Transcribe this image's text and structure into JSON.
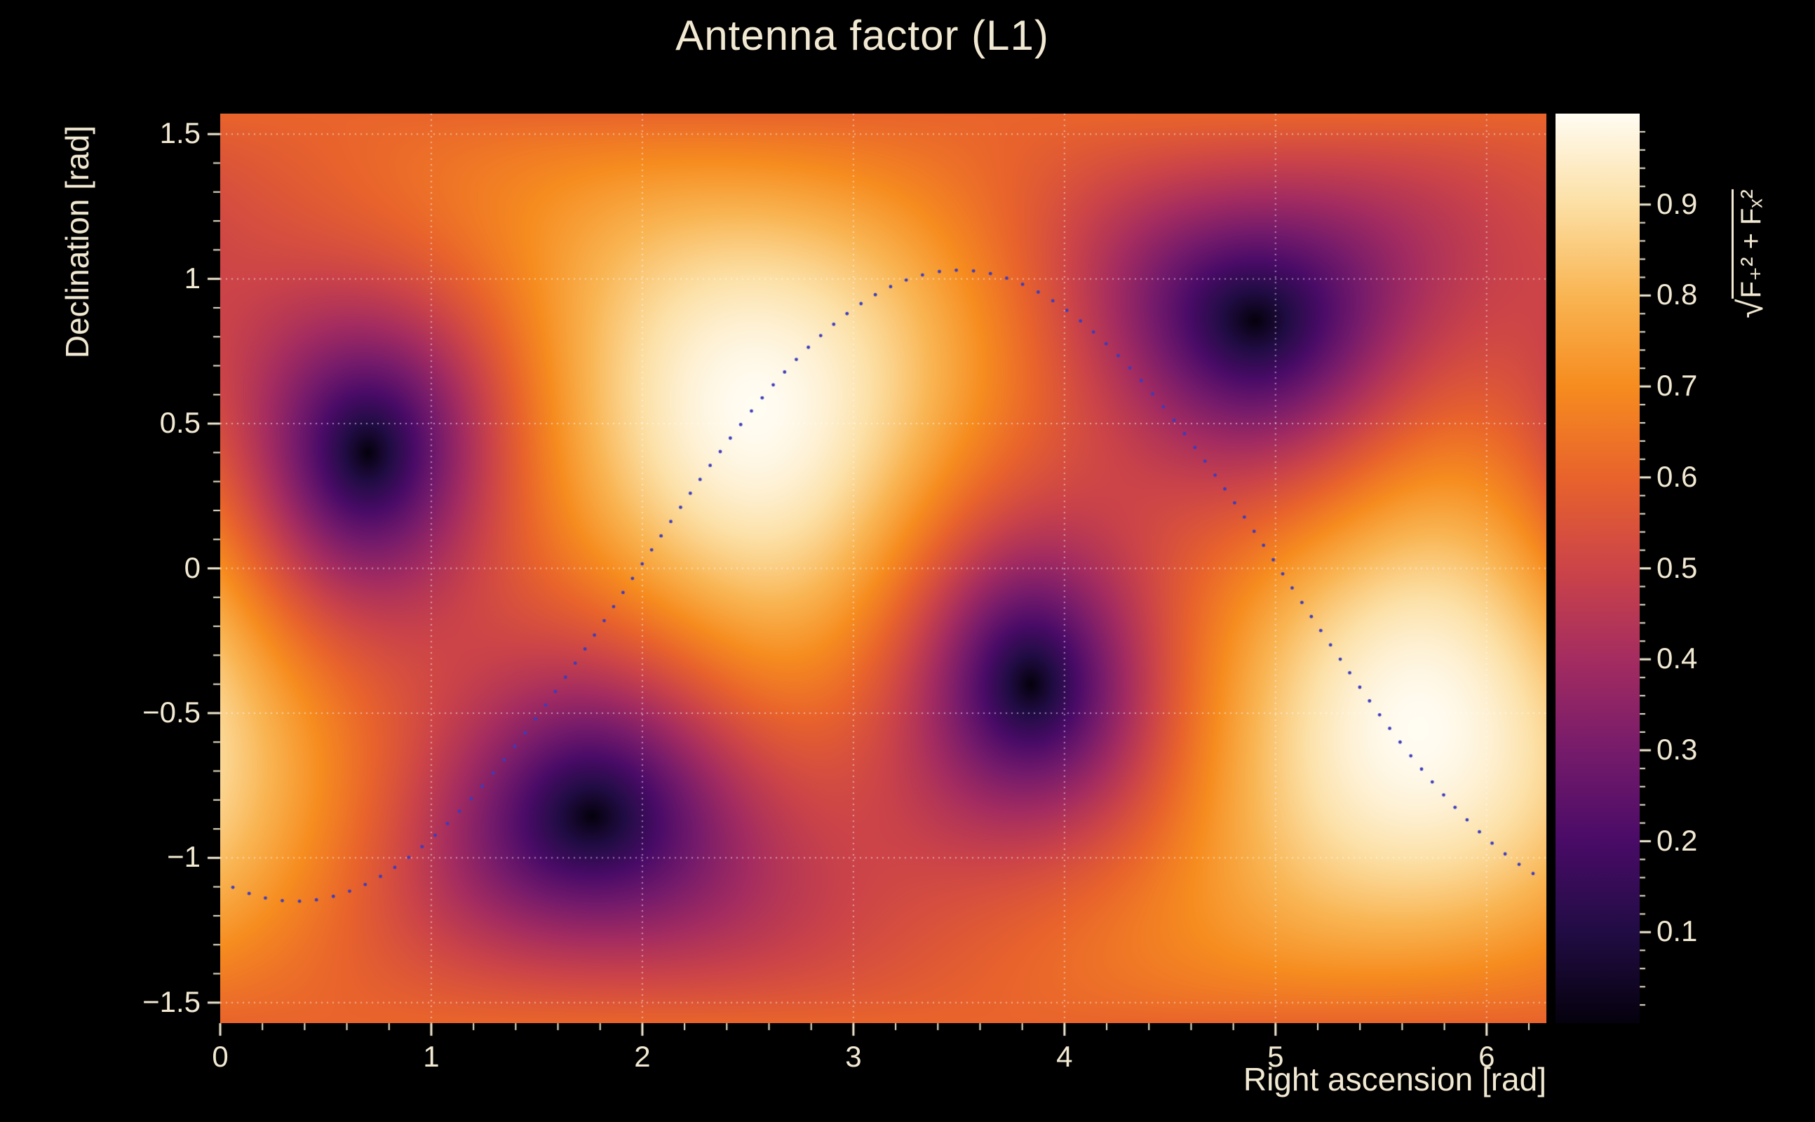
{
  "style": {
    "background": "#000000",
    "text_color": "#f2e9d3",
    "grid_color": "rgba(255,255,255,0.5)"
  },
  "chart_data": {
    "type": "heatmap",
    "title": "Antenna factor (L1)",
    "x_axis": {
      "title": "Right ascension [rad]",
      "range": [
        0,
        6.2832
      ],
      "tick_values": [
        0,
        1,
        2,
        3,
        4,
        5,
        6
      ],
      "tick_labels": [
        "0",
        "1",
        "2",
        "3",
        "4",
        "5",
        "6"
      ],
      "minor_tick_step": 0.2
    },
    "y_axis": {
      "title": "Declination [rad]",
      "range": [
        -1.5708,
        1.5708
      ],
      "tick_values": [
        1.5,
        1,
        0.5,
        0,
        -0.5,
        -1,
        -1.5
      ],
      "tick_labels": [
        "1.5",
        "1",
        "0.5",
        "0",
        "−0.5",
        "−1",
        "−1.5"
      ],
      "minor_tick_step": 0.1
    },
    "z_axis": {
      "title_radical": "√",
      "title_expr": "F₊² + Fₓ²",
      "range": [
        0,
        1
      ],
      "tick_values": [
        0.1,
        0.2,
        0.3,
        0.4,
        0.5,
        0.6,
        0.7,
        0.8,
        0.9
      ],
      "tick_labels": [
        "0.1",
        "0.2",
        "0.3",
        "0.4",
        "0.5",
        "0.6",
        "0.7",
        "0.8",
        "0.9"
      ],
      "minor_tick_step": 0.02
    },
    "grid": true,
    "colormap_stops": [
      [
        0.0,
        "#05010d"
      ],
      [
        0.1,
        "#210c44"
      ],
      [
        0.2,
        "#490b67"
      ],
      [
        0.3,
        "#761b6b"
      ],
      [
        0.4,
        "#a42c60"
      ],
      [
        0.5,
        "#cc4448"
      ],
      [
        0.6,
        "#e8632c"
      ],
      [
        0.7,
        "#f68c1f"
      ],
      [
        0.8,
        "#f9b553"
      ],
      [
        0.9,
        "#fcdfa4"
      ],
      [
        1.0,
        "#fffcf2"
      ]
    ],
    "antenna_model": {
      "description": "sqrt(Fplus^2 + Fcross^2) antenna power pattern of a single interferometer",
      "zenith": {
        "ra": 2.536,
        "dec": 0.555
      },
      "null_direction": {
        "ra": 0.7,
        "dec": 0.4
      },
      "maxima": [
        {
          "ra": 2.54,
          "dec": 0.56,
          "value": 1.0
        },
        {
          "ra": 5.68,
          "dec": -0.56,
          "value": 1.0
        }
      ],
      "nulls": [
        {
          "ra": 0.7,
          "dec": 0.4,
          "value": 0.0
        },
        {
          "ra": 1.76,
          "dec": -0.85,
          "value": 0.0
        },
        {
          "ra": 3.84,
          "dec": -0.4,
          "value": 0.0
        },
        {
          "ra": 4.9,
          "dec": 0.85,
          "value": 0.0
        }
      ]
    },
    "track": {
      "description": "dotted source track: dec = offset + A*sin(ra - phase)",
      "A": 1.09,
      "offset": -0.06,
      "phase": 1.93,
      "ra_range": [
        0.06,
        6.22
      ],
      "n_dots": 110,
      "dot_color": "#3c3cbc"
    }
  }
}
